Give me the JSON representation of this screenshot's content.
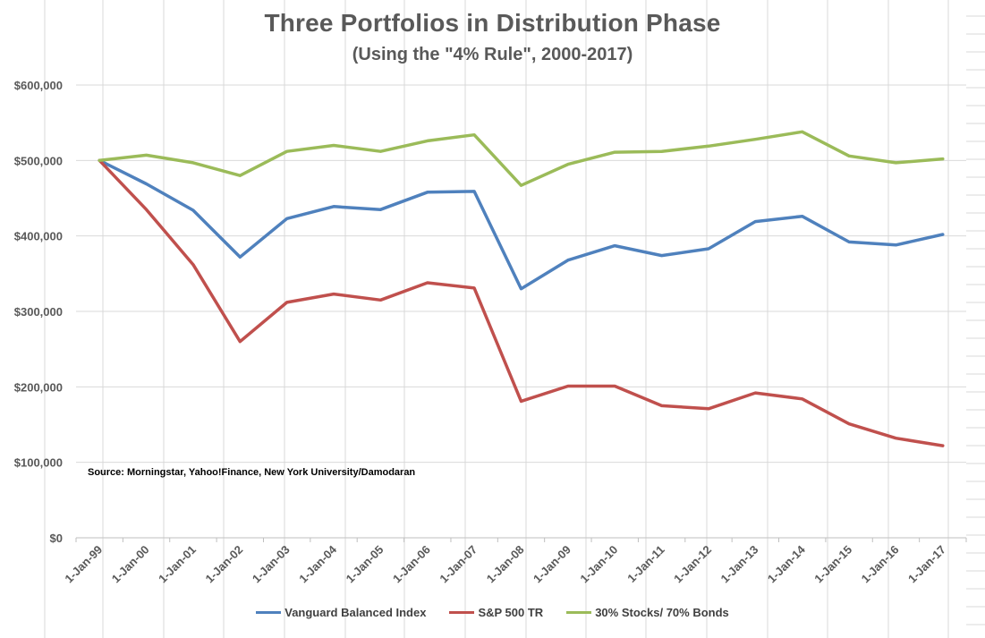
{
  "chart_data": {
    "type": "line",
    "title": "Three Portfolios in Distribution Phase",
    "subtitle": "(Using the \"4% Rule\", 2000-2017)",
    "source": "Source: Morningstar, Yahoo!Finance, New York University/Damodaran",
    "categories": [
      "1-Jan-99",
      "1-Jan-00",
      "1-Jan-01",
      "1-Jan-02",
      "1-Jan-03",
      "1-Jan-04",
      "1-Jan-05",
      "1-Jan-06",
      "1-Jan-07",
      "1-Jan-08",
      "1-Jan-09",
      "1-Jan-10",
      "1-Jan-11",
      "1-Jan-12",
      "1-Jan-13",
      "1-Jan-14",
      "1-Jan-15",
      "1-Jan-16",
      "1-Jan-17"
    ],
    "ylim": [
      0,
      600000
    ],
    "yticks": [
      0,
      100000,
      200000,
      300000,
      400000,
      500000,
      600000
    ],
    "ytick_labels": [
      "$0",
      "$100,000",
      "$200,000",
      "$300,000",
      "$400,000",
      "$500,000",
      "$600,000"
    ],
    "gridlines": true,
    "legend_position": "bottom",
    "series": [
      {
        "name": "Vanguard Balanced Index",
        "color": "#4f81bd",
        "values": [
          500000,
          469000,
          434000,
          372000,
          423000,
          439000,
          435000,
          458000,
          459000,
          330000,
          368000,
          387000,
          374000,
          383000,
          419000,
          426000,
          392000,
          388000,
          402000
        ]
      },
      {
        "name": "S&P 500 TR",
        "color": "#c0504d",
        "values": [
          500000,
          435000,
          362000,
          260000,
          312000,
          323000,
          315000,
          338000,
          331000,
          181000,
          201000,
          201000,
          175000,
          171000,
          192000,
          184000,
          151000,
          132000,
          122000
        ]
      },
      {
        "name": "30% Stocks/ 70% Bonds",
        "color": "#9bbb59",
        "values": [
          500000,
          507000,
          497000,
          480000,
          512000,
          520000,
          512000,
          526000,
          534000,
          467000,
          495000,
          511000,
          512000,
          519000,
          528000,
          538000,
          506000,
          497000,
          502000
        ]
      }
    ]
  }
}
